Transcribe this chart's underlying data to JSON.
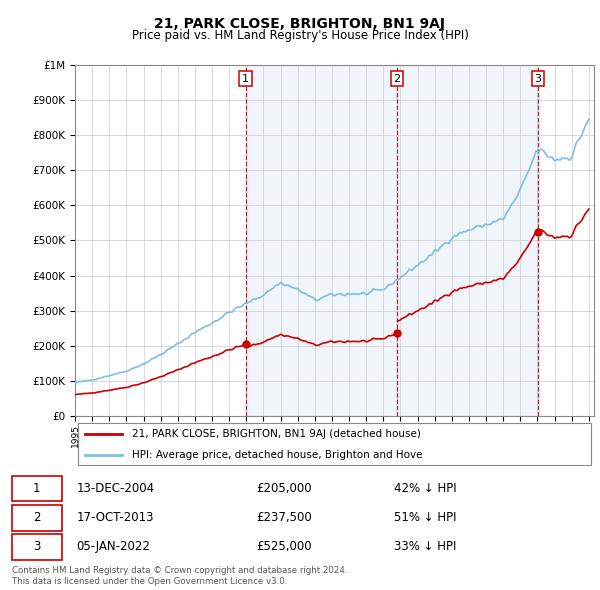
{
  "title": "21, PARK CLOSE, BRIGHTON, BN1 9AJ",
  "subtitle": "Price paid vs. HM Land Registry's House Price Index (HPI)",
  "footer": "Contains HM Land Registry data © Crown copyright and database right 2024.\nThis data is licensed under the Open Government Licence v3.0.",
  "legend_line1": "21, PARK CLOSE, BRIGHTON, BN1 9AJ (detached house)",
  "legend_line2": "HPI: Average price, detached house, Brighton and Hove",
  "sale_events": [
    {
      "num": 1,
      "date": "13-DEC-2004",
      "price": 205000,
      "pct": "42%",
      "year": 2004.96
    },
    {
      "num": 2,
      "date": "17-OCT-2013",
      "price": 237500,
      "pct": "51%",
      "year": 2013.79
    },
    {
      "num": 3,
      "date": "05-JAN-2022",
      "price": 525000,
      "pct": "33%",
      "year": 2022.04
    }
  ],
  "hpi_color": "#7fbfdf",
  "sale_color": "#cc0000",
  "vline_color": "#cc0000",
  "shade_color": "#ddeeff",
  "background_color": "#ffffff",
  "grid_color": "#cccccc",
  "ylim": [
    0,
    1000000
  ],
  "xlim_start": 1995.0,
  "xlim_end": 2025.3
}
